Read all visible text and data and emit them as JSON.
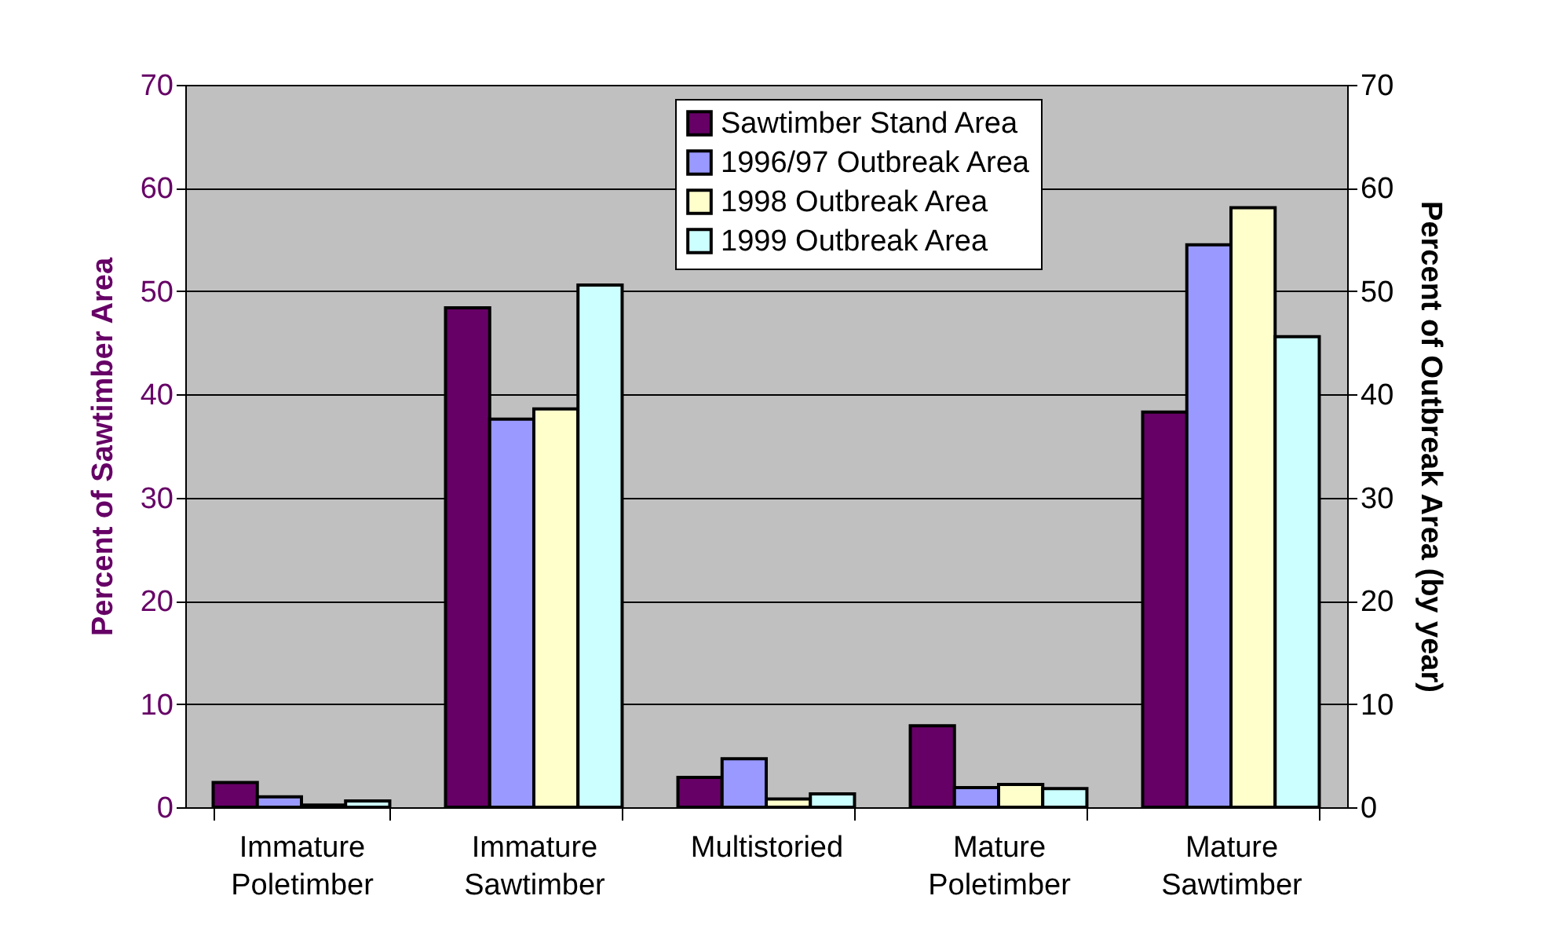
{
  "chart_data": {
    "type": "bar",
    "ylabel": "Percent of Sawtimber Area",
    "y2label": "Percent of Outbreak Area (by year)",
    "categories": [
      "Immature Poletimber",
      "Immature Sawtimber",
      "Multistoried",
      "Mature Poletimber",
      "Mature Sawtimber"
    ],
    "series": [
      {
        "name": "Sawtimber Stand Area",
        "color": "#660066",
        "values": [
          2.4,
          48.4,
          2.9,
          7.9,
          38.3
        ]
      },
      {
        "name": "1996/97 Outbreak Area",
        "color": "#9999ff",
        "values": [
          1.0,
          37.6,
          4.7,
          1.9,
          54.5
        ]
      },
      {
        "name": "1998 Outbreak Area",
        "color": "#ffffcc",
        "values": [
          0.2,
          38.6,
          0.8,
          2.2,
          58.1
        ]
      },
      {
        "name": "1999 Outbreak Area",
        "color": "#ccffff",
        "values": [
          0.6,
          50.6,
          1.3,
          1.8,
          45.6
        ]
      }
    ],
    "ylim": [
      0,
      70
    ],
    "yticks": [
      0,
      10,
      20,
      30,
      40,
      50,
      60,
      70
    ],
    "y2lim": [
      0,
      70
    ],
    "y2ticks": [
      0,
      10,
      20,
      30,
      40,
      50,
      60,
      70
    ],
    "grid": "y",
    "legend": "top"
  }
}
